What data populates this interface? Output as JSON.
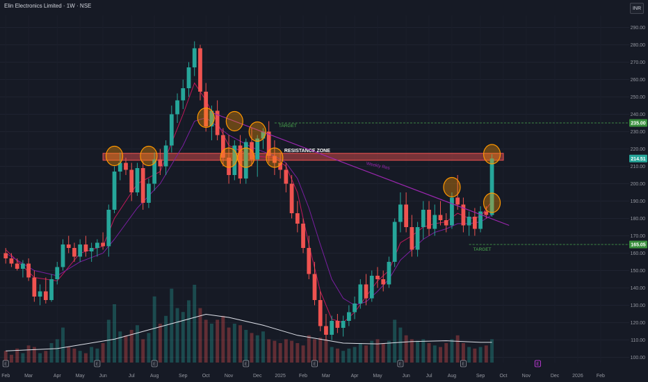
{
  "header": {
    "title": "Elin Electronics Limited · 1W · NSE",
    "currency": "INR"
  },
  "colors": {
    "background": "#161a25",
    "up": "#26a69a",
    "down": "#ef5350",
    "ema_fast": "#c2185b",
    "ema_slow": "#7b1fa2",
    "trendline": "#9c27b0",
    "resistance": "#ef5350",
    "circle": "#ff9800",
    "target": "#4caf50",
    "volume_ma": "#e0e3eb"
  },
  "chart_data": {
    "type": "candlestick",
    "y_axis": {
      "ticks": [
        100,
        110,
        120,
        130,
        140,
        150,
        160,
        170,
        180,
        190,
        200,
        210,
        220,
        230,
        240,
        250,
        260,
        270,
        280,
        290
      ],
      "range": [
        97,
        297
      ]
    },
    "x_axis": {
      "labels": [
        {
          "label": "Feb",
          "week": 1
        },
        {
          "label": "Mar",
          "week": 5
        },
        {
          "label": "Apr",
          "week": 10
        },
        {
          "label": "May",
          "week": 14
        },
        {
          "label": "Jun",
          "week": 18
        },
        {
          "label": "Jul",
          "week": 23
        },
        {
          "label": "Aug",
          "week": 27
        },
        {
          "label": "Sep",
          "week": 32
        },
        {
          "label": "Oct",
          "week": 36
        },
        {
          "label": "Nov",
          "week": 40
        },
        {
          "label": "Dec",
          "week": 45
        },
        {
          "label": "2025",
          "week": 49
        },
        {
          "label": "Feb",
          "week": 53
        },
        {
          "label": "Mar",
          "week": 57
        },
        {
          "label": "Apr",
          "week": 62
        },
        {
          "label": "May",
          "week": 66
        },
        {
          "label": "Jun",
          "week": 71
        },
        {
          "label": "Jul",
          "week": 75
        },
        {
          "label": "Aug",
          "week": 79
        },
        {
          "label": "Sep",
          "week": 84
        },
        {
          "label": "Oct",
          "week": 88
        },
        {
          "label": "Nov",
          "week": 92
        },
        {
          "label": "Dec",
          "week": 97
        },
        {
          "label": "2026",
          "week": 101
        },
        {
          "label": "Feb",
          "week": 105
        }
      ],
      "week_range": [
        0,
        110
      ]
    },
    "ohlc": [
      [
        1,
        160,
        163,
        154,
        157
      ],
      [
        2,
        157,
        160,
        152,
        154
      ],
      [
        3,
        154,
        157,
        150,
        151
      ],
      [
        4,
        151,
        156,
        146,
        154
      ],
      [
        5,
        154,
        157,
        144,
        146
      ],
      [
        6,
        146,
        150,
        132,
        135
      ],
      [
        7,
        135,
        142,
        130,
        138
      ],
      [
        8,
        138,
        146,
        131,
        133
      ],
      [
        9,
        133,
        148,
        132,
        145
      ],
      [
        10,
        145,
        155,
        142,
        152
      ],
      [
        11,
        152,
        168,
        150,
        165
      ],
      [
        12,
        165,
        170,
        160,
        163
      ],
      [
        13,
        163,
        166,
        155,
        158
      ],
      [
        14,
        158,
        168,
        155,
        165
      ],
      [
        15,
        165,
        170,
        158,
        161
      ],
      [
        16,
        161,
        166,
        155,
        163
      ],
      [
        17,
        163,
        168,
        158,
        166
      ],
      [
        18,
        166,
        172,
        162,
        164
      ],
      [
        19,
        164,
        188,
        158,
        185
      ],
      [
        20,
        185,
        210,
        183,
        207
      ],
      [
        21,
        207,
        218,
        202,
        212
      ],
      [
        22,
        212,
        215,
        205,
        208
      ],
      [
        23,
        208,
        212,
        190,
        195
      ],
      [
        24,
        195,
        212,
        193,
        209
      ],
      [
        25,
        209,
        213,
        185,
        189
      ],
      [
        26,
        189,
        203,
        186,
        200
      ],
      [
        27,
        200,
        218,
        196,
        214
      ],
      [
        28,
        214,
        220,
        205,
        210
      ],
      [
        29,
        210,
        225,
        205,
        222
      ],
      [
        30,
        222,
        245,
        218,
        240
      ],
      [
        31,
        240,
        252,
        235,
        248
      ],
      [
        32,
        248,
        260,
        243,
        255
      ],
      [
        33,
        255,
        270,
        250,
        267
      ],
      [
        34,
        267,
        282,
        262,
        278
      ],
      [
        35,
        278,
        280,
        248,
        253
      ],
      [
        36,
        253,
        258,
        230,
        233
      ],
      [
        37,
        233,
        245,
        225,
        242
      ],
      [
        38,
        242,
        248,
        225,
        228
      ],
      [
        39,
        228,
        232,
        210,
        215
      ],
      [
        40,
        215,
        228,
        200,
        205
      ],
      [
        41,
        205,
        225,
        202,
        222
      ],
      [
        42,
        222,
        228,
        200,
        203
      ],
      [
        43,
        203,
        226,
        200,
        224
      ],
      [
        44,
        224,
        232,
        210,
        214
      ],
      [
        45,
        214,
        228,
        204,
        226
      ],
      [
        46,
        226,
        232,
        220,
        230
      ],
      [
        47,
        230,
        236,
        212,
        216
      ],
      [
        48,
        216,
        225,
        205,
        212
      ],
      [
        49,
        212,
        218,
        203,
        208
      ],
      [
        50,
        208,
        212,
        195,
        200
      ],
      [
        51,
        200,
        205,
        180,
        183
      ],
      [
        52,
        183,
        190,
        172,
        177
      ],
      [
        53,
        177,
        180,
        160,
        163
      ],
      [
        54,
        163,
        170,
        145,
        148
      ],
      [
        55,
        148,
        155,
        130,
        133
      ],
      [
        56,
        133,
        138,
        115,
        118
      ],
      [
        57,
        118,
        125,
        110,
        113
      ],
      [
        58,
        113,
        124,
        110,
        121
      ],
      [
        59,
        121,
        125,
        114,
        117
      ],
      [
        60,
        117,
        124,
        112,
        121
      ],
      [
        61,
        121,
        130,
        118,
        126
      ],
      [
        62,
        126,
        135,
        122,
        131
      ],
      [
        63,
        131,
        145,
        128,
        142
      ],
      [
        64,
        142,
        148,
        130,
        134
      ],
      [
        65,
        134,
        150,
        132,
        147
      ],
      [
        66,
        147,
        152,
        140,
        145
      ],
      [
        67,
        145,
        150,
        138,
        142
      ],
      [
        68,
        142,
        158,
        140,
        155
      ],
      [
        69,
        155,
        180,
        152,
        178
      ],
      [
        70,
        178,
        195,
        172,
        188
      ],
      [
        71,
        188,
        195,
        172,
        175
      ],
      [
        72,
        175,
        182,
        158,
        162
      ],
      [
        73,
        162,
        178,
        158,
        175
      ],
      [
        74,
        175,
        190,
        168,
        185
      ],
      [
        75,
        185,
        190,
        170,
        174
      ],
      [
        76,
        174,
        188,
        170,
        182
      ],
      [
        77,
        182,
        190,
        176,
        179
      ],
      [
        78,
        179,
        183,
        172,
        176
      ],
      [
        79,
        176,
        195,
        174,
        192
      ],
      [
        80,
        192,
        205,
        185,
        188
      ],
      [
        81,
        188,
        192,
        172,
        176
      ],
      [
        82,
        176,
        184,
        170,
        181
      ],
      [
        83,
        181,
        186,
        170,
        174
      ],
      [
        84,
        174,
        187,
        172,
        184
      ],
      [
        85,
        184,
        187,
        180,
        182
      ],
      [
        86,
        182,
        217,
        181,
        214.5
      ]
    ],
    "ema_fast": [
      [
        1,
        162
      ],
      [
        6,
        146
      ],
      [
        10,
        144
      ],
      [
        14,
        160
      ],
      [
        18,
        164
      ],
      [
        20,
        180
      ],
      [
        24,
        200
      ],
      [
        28,
        207
      ],
      [
        32,
        240
      ],
      [
        34,
        258
      ],
      [
        36,
        248
      ],
      [
        40,
        222
      ],
      [
        44,
        216
      ],
      [
        48,
        215
      ],
      [
        50,
        210
      ],
      [
        52,
        195
      ],
      [
        54,
        165
      ],
      [
        56,
        138
      ],
      [
        58,
        122
      ],
      [
        60,
        120
      ],
      [
        62,
        126
      ],
      [
        64,
        135
      ],
      [
        66,
        144
      ],
      [
        68,
        150
      ],
      [
        70,
        166
      ],
      [
        72,
        170
      ],
      [
        74,
        175
      ],
      [
        76,
        177
      ],
      [
        78,
        178
      ],
      [
        80,
        183
      ],
      [
        82,
        180
      ],
      [
        84,
        181
      ],
      [
        86,
        190
      ]
    ],
    "ema_slow": [
      [
        1,
        160
      ],
      [
        6,
        150
      ],
      [
        10,
        147
      ],
      [
        14,
        155
      ],
      [
        18,
        160
      ],
      [
        20,
        168
      ],
      [
        24,
        186
      ],
      [
        28,
        200
      ],
      [
        32,
        222
      ],
      [
        34,
        236
      ],
      [
        36,
        238
      ],
      [
        40,
        228
      ],
      [
        44,
        221
      ],
      [
        48,
        216
      ],
      [
        50,
        212
      ],
      [
        52,
        203
      ],
      [
        54,
        186
      ],
      [
        56,
        165
      ],
      [
        58,
        145
      ],
      [
        60,
        134
      ],
      [
        62,
        130
      ],
      [
        64,
        132
      ],
      [
        66,
        138
      ],
      [
        68,
        145
      ],
      [
        70,
        156
      ],
      [
        72,
        162
      ],
      [
        74,
        168
      ],
      [
        76,
        172
      ],
      [
        78,
        174
      ],
      [
        80,
        177
      ],
      [
        82,
        177
      ],
      [
        84,
        178
      ],
      [
        86,
        182
      ]
    ],
    "volume": [
      0.15,
      0.1,
      0.18,
      0.12,
      0.22,
      0.2,
      0.12,
      0.15,
      0.25,
      0.3,
      0.45,
      0.2,
      0.18,
      0.15,
      0.12,
      0.2,
      0.18,
      0.25,
      0.55,
      0.75,
      0.4,
      0.35,
      0.42,
      0.48,
      0.3,
      0.38,
      0.85,
      0.5,
      0.6,
      0.95,
      0.7,
      0.65,
      0.8,
      1.0,
      0.7,
      0.55,
      0.5,
      0.55,
      0.6,
      0.45,
      0.5,
      0.48,
      0.42,
      0.38,
      0.35,
      0.4,
      0.3,
      0.28,
      0.25,
      0.3,
      0.28,
      0.25,
      0.22,
      0.35,
      0.3,
      0.32,
      0.3,
      0.2,
      0.18,
      0.15,
      0.18,
      0.2,
      0.25,
      0.22,
      0.28,
      0.3,
      0.25,
      0.28,
      0.55,
      0.45,
      0.35,
      0.3,
      0.28,
      0.3,
      0.25,
      0.22,
      0.2,
      0.25,
      0.3,
      0.35,
      0.25,
      0.2,
      0.18,
      0.2,
      0.22,
      0.3
    ],
    "volume_ma": [
      [
        1,
        0.15
      ],
      [
        10,
        0.18
      ],
      [
        20,
        0.3
      ],
      [
        30,
        0.5
      ],
      [
        36,
        0.62
      ],
      [
        40,
        0.58
      ],
      [
        46,
        0.48
      ],
      [
        52,
        0.35
      ],
      [
        56,
        0.3
      ],
      [
        60,
        0.25
      ],
      [
        66,
        0.24
      ],
      [
        72,
        0.27
      ],
      [
        78,
        0.28
      ],
      [
        84,
        0.26
      ],
      [
        86,
        0.26
      ]
    ],
    "resistance_zone": {
      "low": 213.5,
      "high": 217.5,
      "from_week": 18,
      "to_week": 88,
      "label": "RESISTANCE ZONE"
    },
    "trendline": {
      "from": [
        37,
        241
      ],
      "to": [
        89,
        176
      ],
      "label": "Weekly Res"
    },
    "targets": [
      {
        "label": "TARGET",
        "value": 235,
        "from_week": 48,
        "badge": "235.00"
      },
      {
        "label": "TARGET",
        "value": 165,
        "from_week": 82,
        "badge": "165.05"
      }
    ],
    "current_price": {
      "value": 214.5,
      "badge": "214.51"
    },
    "circles": [
      [
        20,
        216
      ],
      [
        26,
        216
      ],
      [
        36,
        238
      ],
      [
        40,
        215
      ],
      [
        41,
        236
      ],
      [
        43,
        215
      ],
      [
        45,
        230
      ],
      [
        48,
        215
      ],
      [
        79,
        198
      ],
      [
        86,
        217
      ],
      [
        86,
        189
      ]
    ],
    "event_markers": [
      {
        "week": 1,
        "label": "E"
      },
      {
        "week": 17,
        "label": "E"
      },
      {
        "week": 27,
        "label": "E"
      },
      {
        "week": 43,
        "label": "E"
      },
      {
        "week": 55,
        "label": "E"
      },
      {
        "week": 70,
        "label": "E"
      },
      {
        "week": 81,
        "label": "E"
      },
      {
        "week": 94,
        "label": "E",
        "upcoming": true
      }
    ]
  }
}
